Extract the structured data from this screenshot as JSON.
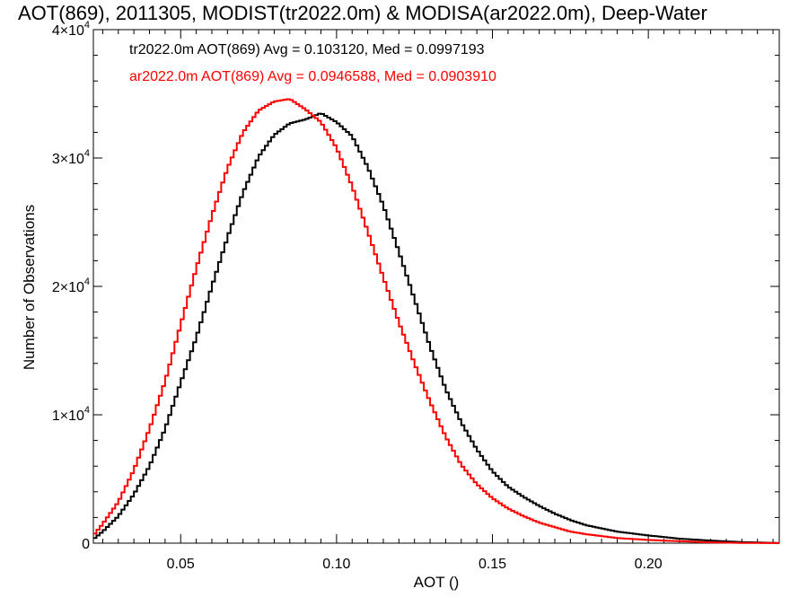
{
  "chart_data": {
    "type": "line",
    "title": "AOT(869), 2011305, MODIST(tr2022.0m) & MODISA(ar2022.0m), Deep-Water",
    "xlabel": "AOT ()",
    "ylabel": "Number of Observations",
    "xlim": [
      0.022,
      0.242
    ],
    "ylim": [
      0,
      40000
    ],
    "x_ticks": [
      0.05,
      0.1,
      0.15,
      0.2
    ],
    "x_tick_labels": [
      "0.05",
      "0.10",
      "0.15",
      "0.20"
    ],
    "y_ticks": [
      0,
      10000,
      20000,
      30000,
      40000
    ],
    "y_tick_labels": [
      {
        "base": "0",
        "exp": ""
      },
      {
        "base": "1×10",
        "exp": "4"
      },
      {
        "base": "2×10",
        "exp": "4"
      },
      {
        "base": "3×10",
        "exp": "4"
      },
      {
        "base": "4×10",
        "exp": "4"
      }
    ],
    "grid": false,
    "step": true,
    "bin_width": 0.001,
    "annotations": [
      {
        "text": "tr2022.0m AOT(869) Avg = 0.103120, Med = 0.0997193",
        "color": "#000000"
      },
      {
        "text": "ar2022.0m AOT(869) Avg = 0.0946588, Med = 0.0903910",
        "color": "#ff0000"
      }
    ],
    "series": [
      {
        "color": "#000000",
        "x": [
          0.022,
          0.025,
          0.03,
          0.035,
          0.04,
          0.045,
          0.05,
          0.055,
          0.06,
          0.065,
          0.07,
          0.075,
          0.08,
          0.085,
          0.09,
          0.095,
          0.1,
          0.105,
          0.11,
          0.115,
          0.12,
          0.125,
          0.13,
          0.135,
          0.14,
          0.145,
          0.15,
          0.155,
          0.16,
          0.165,
          0.17,
          0.175,
          0.18,
          0.19,
          0.2,
          0.21,
          0.22,
          0.23,
          0.242
        ],
        "y": [
          300,
          900,
          2100,
          3800,
          6000,
          8900,
          12500,
          16000,
          20000,
          23800,
          27300,
          30100,
          31800,
          32700,
          33000,
          33500,
          32800,
          31700,
          29300,
          26300,
          22700,
          19000,
          15300,
          12000,
          9400,
          7300,
          5600,
          4400,
          3600,
          2900,
          2300,
          1800,
          1400,
          900,
          600,
          350,
          200,
          80,
          10
        ]
      },
      {
        "color": "#ff0000",
        "x": [
          0.022,
          0.025,
          0.03,
          0.035,
          0.04,
          0.045,
          0.05,
          0.055,
          0.06,
          0.065,
          0.07,
          0.075,
          0.08,
          0.085,
          0.09,
          0.095,
          0.1,
          0.105,
          0.11,
          0.115,
          0.12,
          0.125,
          0.13,
          0.135,
          0.14,
          0.145,
          0.15,
          0.155,
          0.16,
          0.165,
          0.17,
          0.175,
          0.18,
          0.19,
          0.2,
          0.21,
          0.22,
          0.23,
          0.242
        ],
        "y": [
          600,
          1500,
          3200,
          5700,
          8900,
          12600,
          17000,
          21400,
          25500,
          29200,
          32000,
          33700,
          34400,
          34600,
          33800,
          32800,
          30800,
          27800,
          24300,
          20700,
          17200,
          14000,
          11000,
          8300,
          6100,
          4600,
          3500,
          2700,
          2100,
          1600,
          1250,
          900,
          700,
          400,
          250,
          150,
          60,
          20,
          5
        ]
      }
    ]
  }
}
